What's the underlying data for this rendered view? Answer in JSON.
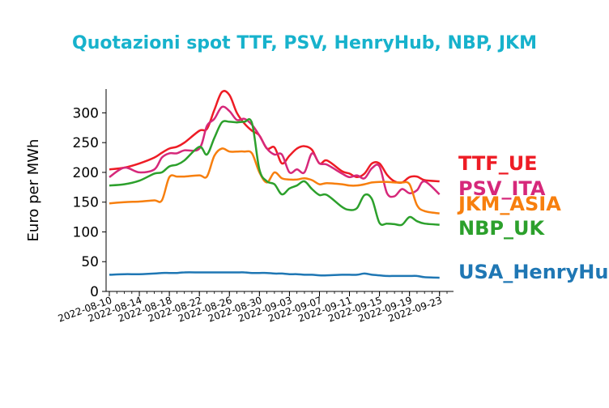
{
  "chart_data": {
    "type": "line",
    "title": "Quotazioni spot TTF, PSV, HenryHub, NBP, JKM",
    "title_color": "#17b2cc",
    "ylabel": "Euro per MWh",
    "xlabel": "",
    "ylim": [
      0,
      340
    ],
    "yticks": [
      0,
      50,
      100,
      150,
      200,
      250,
      300
    ],
    "xlim": [
      "2022-08-10",
      "2022-09-24"
    ],
    "xticks": [
      "2022-08-10",
      "2022-08-14",
      "2022-08-18",
      "2022-08-22",
      "2022-08-26",
      "2022-08-30",
      "2022-09-03",
      "2022-09-07",
      "2022-09-11",
      "2022-09-15",
      "2022-09-19",
      "2022-09-23"
    ],
    "grid": false,
    "legend": "inline labels at right end of lines",
    "dates": [
      "2022-08-10",
      "2022-08-12",
      "2022-08-14",
      "2022-08-16",
      "2022-08-17",
      "2022-08-18",
      "2022-08-19",
      "2022-08-20",
      "2022-08-22",
      "2022-08-23",
      "2022-08-24",
      "2022-08-25",
      "2022-08-26",
      "2022-08-27",
      "2022-08-28",
      "2022-08-29",
      "2022-08-30",
      "2022-08-31",
      "2022-09-01",
      "2022-09-02",
      "2022-09-03",
      "2022-09-04",
      "2022-09-05",
      "2022-09-06",
      "2022-09-07",
      "2022-09-08",
      "2022-09-10",
      "2022-09-11",
      "2022-09-12",
      "2022-09-13",
      "2022-09-14",
      "2022-09-15",
      "2022-09-16",
      "2022-09-17",
      "2022-09-18",
      "2022-09-19",
      "2022-09-20",
      "2022-09-21",
      "2022-09-23"
    ],
    "series": [
      {
        "name": "TTF_UE",
        "color": "#ee1c25",
        "values": [
          205,
          208,
          215,
          225,
          233,
          240,
          243,
          250,
          270,
          273,
          305,
          335,
          330,
          300,
          282,
          270,
          262,
          240,
          242,
          215,
          228,
          240,
          244,
          238,
          215,
          220,
          202,
          198,
          192,
          198,
          215,
          215,
          196,
          185,
          183,
          192,
          193,
          187,
          185
        ]
      },
      {
        "name": "PSV_ITA",
        "color": "#d6287a",
        "values": [
          192,
          208,
          200,
          205,
          225,
          232,
          232,
          237,
          240,
          278,
          290,
          310,
          303,
          288,
          290,
          280,
          262,
          240,
          230,
          230,
          200,
          205,
          200,
          232,
          215,
          213,
          198,
          192,
          195,
          190,
          207,
          210,
          165,
          160,
          172,
          165,
          170,
          185,
          163
        ]
      },
      {
        "name": "JKM_ASIA",
        "color": "#f77f0e",
        "values": [
          148,
          150,
          151,
          153,
          153,
          192,
          193,
          193,
          195,
          193,
          228,
          240,
          235,
          235,
          235,
          232,
          200,
          183,
          200,
          190,
          188,
          188,
          190,
          187,
          180,
          182,
          180,
          178,
          178,
          180,
          183,
          184,
          184,
          183,
          183,
          180,
          145,
          135,
          131
        ]
      },
      {
        "name": "NBP_UK",
        "color": "#2ca02c",
        "values": [
          178,
          180,
          186,
          198,
          200,
          210,
          213,
          220,
          243,
          230,
          258,
          284,
          285,
          284,
          285,
          283,
          205,
          185,
          180,
          163,
          173,
          178,
          185,
          172,
          162,
          162,
          142,
          137,
          140,
          162,
          155,
          115,
          114,
          113,
          112,
          125,
          118,
          114,
          112
        ]
      },
      {
        "name": "USA_HenryHub",
        "color": "#1f77b4",
        "values": [
          28,
          29,
          29,
          30,
          31,
          31,
          31,
          32,
          32,
          32,
          32,
          32,
          32,
          32,
          32,
          31,
          31,
          31,
          30,
          30,
          29,
          29,
          28,
          28,
          27,
          27,
          28,
          28,
          28,
          30,
          28,
          27,
          26,
          26,
          26,
          26,
          26,
          24,
          23
        ]
      }
    ]
  }
}
